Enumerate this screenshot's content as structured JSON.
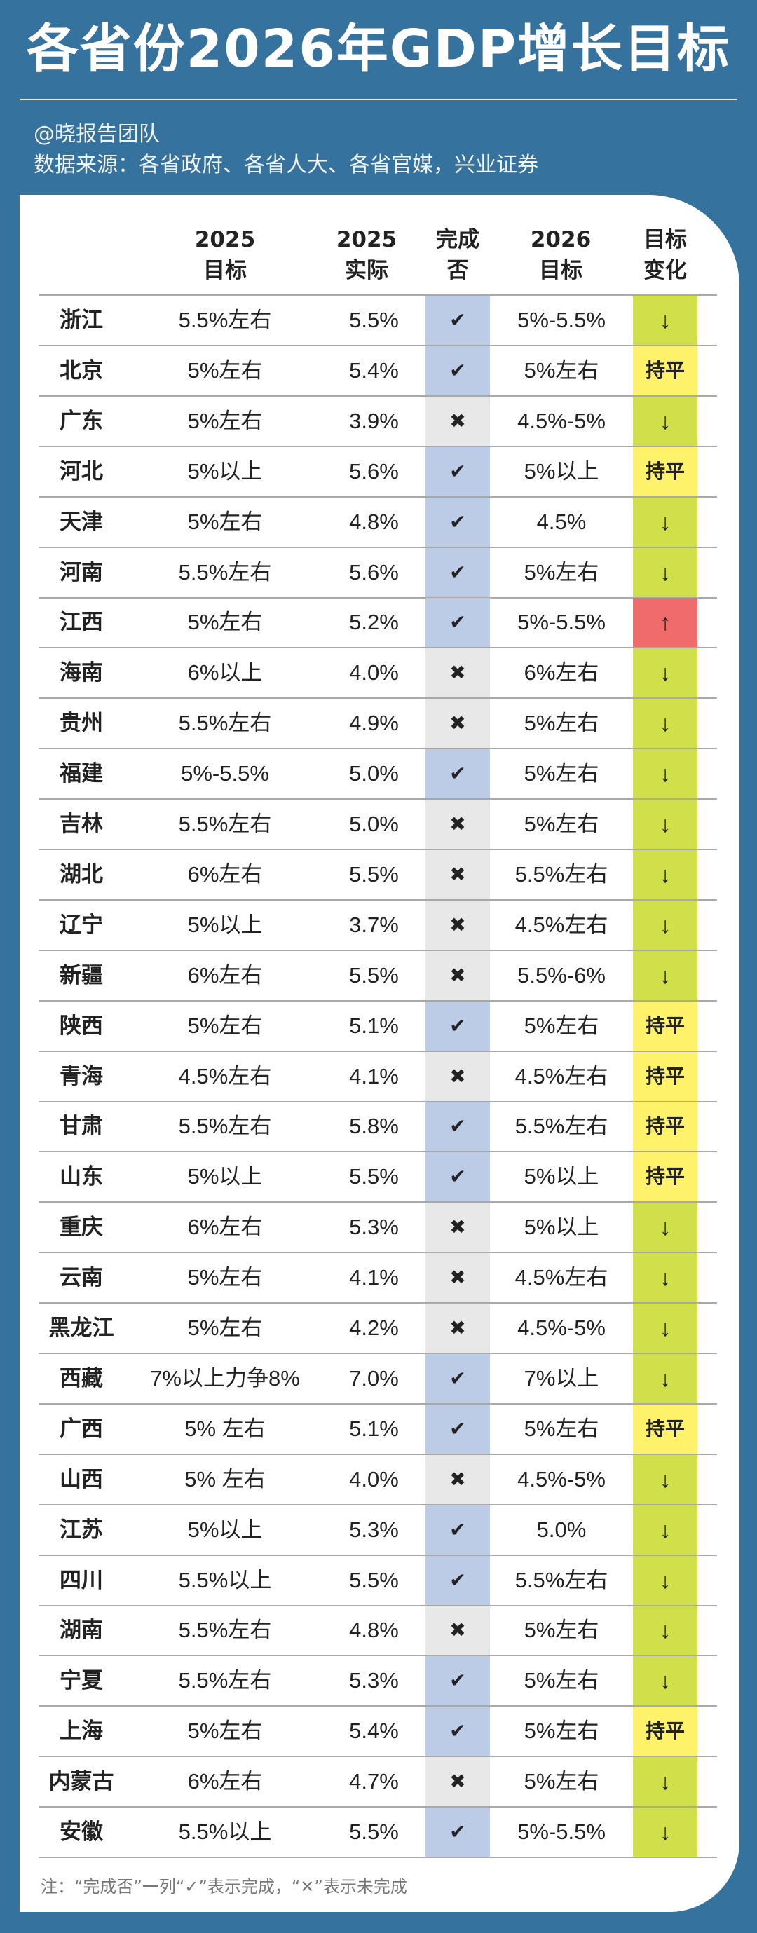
{
  "title": "各省份2026年GDP增长目标",
  "author": "@晓报告团队",
  "source": "数据来源：各省政府、各省人大、各省官媒，兴业证券",
  "colors": {
    "background": "#36729e",
    "done_yes": "#bccbe6",
    "done_no": "#e8e8e8",
    "change_down": "#cfe04a",
    "change_flat": "#fdf26a",
    "change_up": "#f06b6b"
  },
  "headers": {
    "target_2025": [
      "2025",
      "目标"
    ],
    "actual_2025": [
      "2025",
      "实际"
    ],
    "done": [
      "完成",
      "否"
    ],
    "target_2026": [
      "2026",
      "目标"
    ],
    "change": [
      "目标",
      "变化"
    ]
  },
  "symbols": {
    "yes": "✔",
    "no": "✖",
    "down": "↓",
    "flat": "持平",
    "up": "↑"
  },
  "rows": [
    {
      "province": "浙江",
      "target_2025": "5.5%左右",
      "actual_2025": "5.5%",
      "done": "yes",
      "target_2026": "5%-5.5%",
      "change": "down"
    },
    {
      "province": "北京",
      "target_2025": "5%左右",
      "actual_2025": "5.4%",
      "done": "yes",
      "target_2026": "5%左右",
      "change": "flat"
    },
    {
      "province": "广东",
      "target_2025": "5%左右",
      "actual_2025": "3.9%",
      "done": "no",
      "target_2026": "4.5%-5%",
      "change": "down"
    },
    {
      "province": "河北",
      "target_2025": "5%以上",
      "actual_2025": "5.6%",
      "done": "yes",
      "target_2026": "5%以上",
      "change": "flat"
    },
    {
      "province": "天津",
      "target_2025": "5%左右",
      "actual_2025": "4.8%",
      "done": "yes",
      "target_2026": "4.5%",
      "change": "down"
    },
    {
      "province": "河南",
      "target_2025": "5.5%左右",
      "actual_2025": "5.6%",
      "done": "yes",
      "target_2026": "5%左右",
      "change": "down"
    },
    {
      "province": "江西",
      "target_2025": "5%左右",
      "actual_2025": "5.2%",
      "done": "yes",
      "target_2026": "5%-5.5%",
      "change": "up"
    },
    {
      "province": "海南",
      "target_2025": "6%以上",
      "actual_2025": "4.0%",
      "done": "no",
      "target_2026": "6%左右",
      "change": "down"
    },
    {
      "province": "贵州",
      "target_2025": "5.5%左右",
      "actual_2025": "4.9%",
      "done": "no",
      "target_2026": "5%左右",
      "change": "down"
    },
    {
      "province": "福建",
      "target_2025": "5%-5.5%",
      "actual_2025": "5.0%",
      "done": "yes",
      "target_2026": "5%左右",
      "change": "down"
    },
    {
      "province": "吉林",
      "target_2025": "5.5%左右",
      "actual_2025": "5.0%",
      "done": "no",
      "target_2026": "5%左右",
      "change": "down"
    },
    {
      "province": "湖北",
      "target_2025": "6%左右",
      "actual_2025": "5.5%",
      "done": "no",
      "target_2026": "5.5%左右",
      "change": "down"
    },
    {
      "province": "辽宁",
      "target_2025": "5%以上",
      "actual_2025": "3.7%",
      "done": "no",
      "target_2026": "4.5%左右",
      "change": "down"
    },
    {
      "province": "新疆",
      "target_2025": "6%左右",
      "actual_2025": "5.5%",
      "done": "no",
      "target_2026": "5.5%-6%",
      "change": "down"
    },
    {
      "province": "陕西",
      "target_2025": "5%左右",
      "actual_2025": "5.1%",
      "done": "yes",
      "target_2026": "5%左右",
      "change": "flat"
    },
    {
      "province": "青海",
      "target_2025": "4.5%左右",
      "actual_2025": "4.1%",
      "done": "no",
      "target_2026": "4.5%左右",
      "change": "flat"
    },
    {
      "province": "甘肃",
      "target_2025": "5.5%左右",
      "actual_2025": "5.8%",
      "done": "yes",
      "target_2026": "5.5%左右",
      "change": "flat"
    },
    {
      "province": "山东",
      "target_2025": "5%以上",
      "actual_2025": "5.5%",
      "done": "yes",
      "target_2026": "5%以上",
      "change": "flat"
    },
    {
      "province": "重庆",
      "target_2025": "6%左右",
      "actual_2025": "5.3%",
      "done": "no",
      "target_2026": "5%以上",
      "change": "down"
    },
    {
      "province": "云南",
      "target_2025": "5%左右",
      "actual_2025": "4.1%",
      "done": "no",
      "target_2026": "4.5%左右",
      "change": "down"
    },
    {
      "province": "黑龙江",
      "target_2025": "5%左右",
      "actual_2025": "4.2%",
      "done": "no",
      "target_2026": "4.5%-5%",
      "change": "down"
    },
    {
      "province": "西藏",
      "target_2025": "7%以上力争8%",
      "actual_2025": "7.0%",
      "done": "yes",
      "target_2026": "7%以上",
      "change": "down"
    },
    {
      "province": "广西",
      "target_2025": "5% 左右",
      "actual_2025": "5.1%",
      "done": "yes",
      "target_2026": "5%左右",
      "change": "flat"
    },
    {
      "province": "山西",
      "target_2025": "5% 左右",
      "actual_2025": "4.0%",
      "done": "no",
      "target_2026": "4.5%-5%",
      "change": "down"
    },
    {
      "province": "江苏",
      "target_2025": "5%以上",
      "actual_2025": "5.3%",
      "done": "yes",
      "target_2026": "5.0%",
      "change": "down"
    },
    {
      "province": "四川",
      "target_2025": "5.5%以上",
      "actual_2025": "5.5%",
      "done": "yes",
      "target_2026": "5.5%左右",
      "change": "down"
    },
    {
      "province": "湖南",
      "target_2025": "5.5%左右",
      "actual_2025": "4.8%",
      "done": "no",
      "target_2026": "5%左右",
      "change": "down"
    },
    {
      "province": "宁夏",
      "target_2025": "5.5%左右",
      "actual_2025": "5.3%",
      "done": "yes",
      "target_2026": "5%左右",
      "change": "down"
    },
    {
      "province": "上海",
      "target_2025": "5%左右",
      "actual_2025": "5.4%",
      "done": "yes",
      "target_2026": "5%左右",
      "change": "flat"
    },
    {
      "province": "内蒙古",
      "target_2025": "6%左右",
      "actual_2025": "4.7%",
      "done": "no",
      "target_2026": "5%左右",
      "change": "down"
    },
    {
      "province": "安徽",
      "target_2025": "5.5%以上",
      "actual_2025": "5.5%",
      "done": "yes",
      "target_2026": "5%-5.5%",
      "change": "down"
    }
  ],
  "note": "注：“完成否”一列“✓”表示完成，“✕”表示未完成"
}
